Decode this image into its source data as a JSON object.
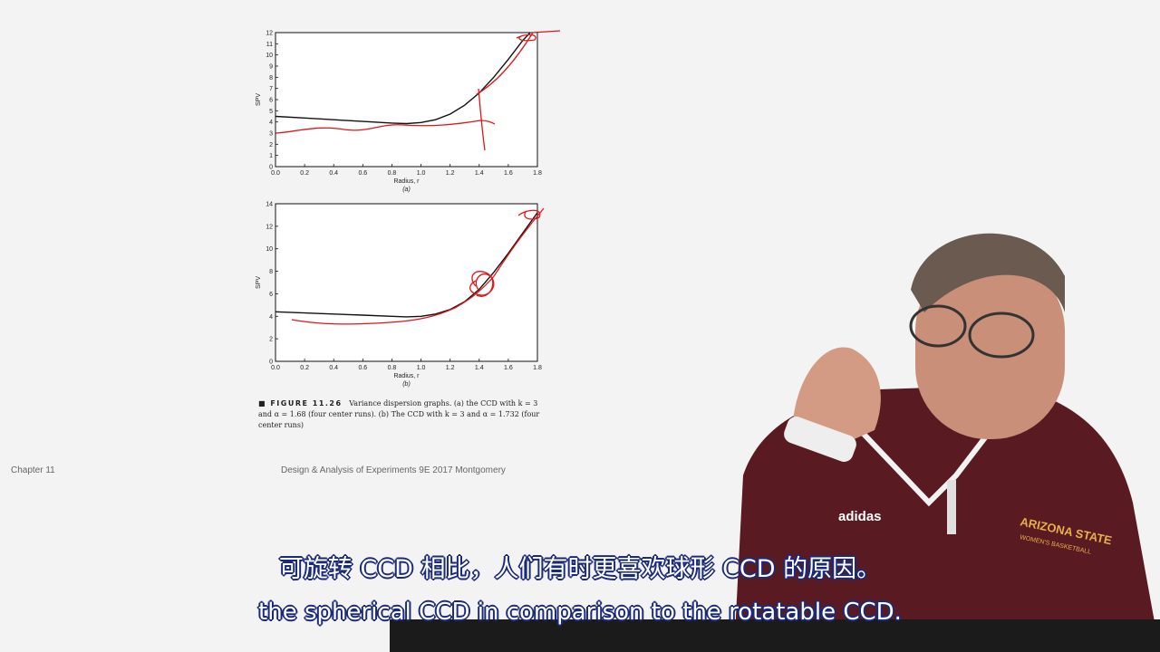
{
  "chart_data": [
    {
      "type": "line",
      "xlabel": "Radius, r",
      "ylabel": "SPV",
      "panel": "(a)",
      "xlim": [
        0.0,
        1.8
      ],
      "ylim": [
        0,
        12
      ],
      "xticks": [
        "0.0",
        "0.2",
        "0.4",
        "0.6",
        "0.8",
        "1.0",
        "1.2",
        "1.4",
        "1.6",
        "1.8"
      ],
      "yticks": [
        "0",
        "1",
        "2",
        "3",
        "4",
        "5",
        "6",
        "7",
        "8",
        "9",
        "10",
        "11",
        "12"
      ],
      "series": [
        {
          "x": [
            0.0,
            0.2,
            0.4,
            0.6,
            0.8,
            0.9,
            1.0,
            1.1,
            1.2,
            1.3,
            1.4,
            1.5,
            1.6,
            1.7,
            1.75
          ],
          "y": [
            4.5,
            4.35,
            4.2,
            4.05,
            3.9,
            3.85,
            3.95,
            4.2,
            4.7,
            5.5,
            6.6,
            8.0,
            9.6,
            11.3,
            12.0
          ]
        }
      ]
    },
    {
      "type": "line",
      "xlabel": "Radius, r",
      "ylabel": "SPV",
      "panel": "(b)",
      "xlim": [
        0.0,
        1.8
      ],
      "ylim": [
        0,
        14
      ],
      "xticks": [
        "0.0",
        "0.2",
        "0.4",
        "0.6",
        "0.8",
        "1.0",
        "1.2",
        "1.4",
        "1.6",
        "1.8"
      ],
      "yticks": [
        "0",
        "2",
        "4",
        "6",
        "8",
        "10",
        "12",
        "14"
      ],
      "series": [
        {
          "x": [
            0.0,
            0.2,
            0.4,
            0.6,
            0.8,
            0.9,
            1.0,
            1.1,
            1.2,
            1.3,
            1.4,
            1.5,
            1.6,
            1.7,
            1.8
          ],
          "y": [
            4.4,
            4.3,
            4.2,
            4.1,
            4.0,
            3.95,
            4.0,
            4.2,
            4.6,
            5.3,
            6.4,
            7.9,
            9.6,
            11.4,
            13.2
          ]
        }
      ]
    }
  ],
  "figure_caption": {
    "label": "FIGURE 11.26",
    "text": "Variance dispersion graphs. (a) the CCD with k = 3 and α = 1.68 (four center runs). (b) The CCD with k = 3 and α = 1.732 (four center runs)"
  },
  "footer": {
    "left": "Chapter 11",
    "right": "Design & Analysis of Experiments 9E 2017 Montgomery"
  },
  "shirt_text": {
    "brand": "adidas",
    "team": "ARIZONA STATE",
    "sub": "WOMEN'S BASKETBALL"
  },
  "subtitles": {
    "zh": "可旋转 CCD 相比，人们有时更喜欢球形 CCD 的原因。",
    "en": "the spherical CCD in comparison to the rotatable CCD."
  },
  "colors": {
    "curve": "#111111",
    "annotation": "#e0161a",
    "jersey": "#5a1a22"
  }
}
